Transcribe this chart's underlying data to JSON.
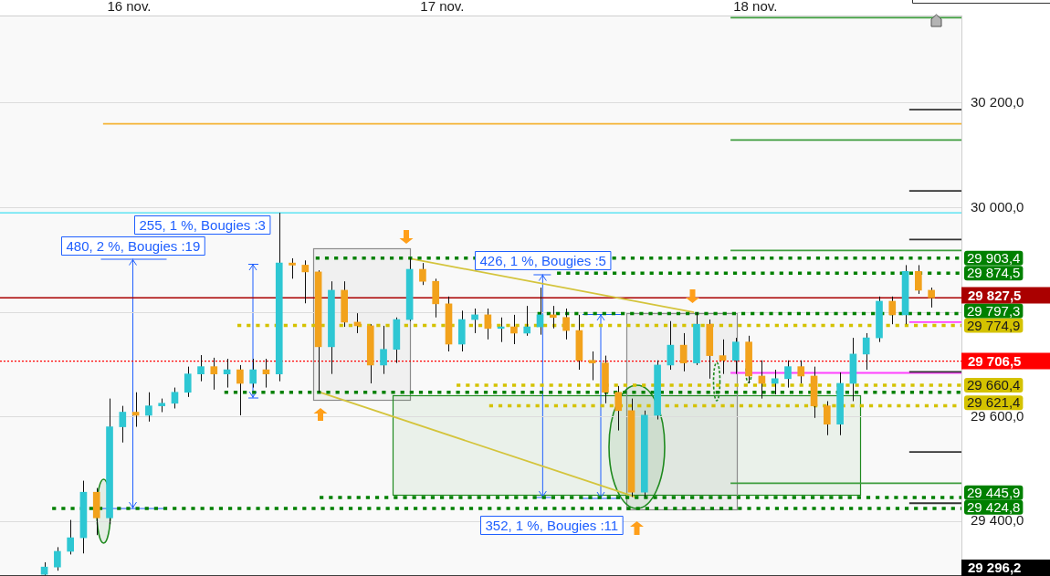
{
  "chart_data": {
    "type": "candlestick",
    "xlim": [
      "--11-15T14:06",
      "--11-18T15:48"
    ],
    "xticks": [
      {
        "value": "--11-16",
        "label": "16 nov."
      },
      {
        "value": "--11-17",
        "label": "17 nov."
      },
      {
        "value": "--11-18",
        "label": "18 nov."
      }
    ],
    "ylim": [
      29296,
      30367
    ],
    "yticks": [
      {
        "value": 29400,
        "label": "29 400,0"
      },
      {
        "value": 29600,
        "label": "29 600,0"
      },
      {
        "value": 29800,
        "label": null
      },
      {
        "value": 30000,
        "label": "30 000,0"
      },
      {
        "value": 30200,
        "label": "30 200,0"
      }
    ],
    "grid": "y",
    "x": [
      "--11-15T17:30",
      "--11-15T18:30",
      "--11-15T19:30",
      "--11-15T20:30",
      "--11-15T21:30",
      "--11-15T22:30",
      "--11-15T23:30",
      "--11-16T00:30",
      "--11-16T01:30",
      "--11-16T02:30",
      "--11-16T03:30",
      "--11-16T04:30",
      "--11-16T05:30",
      "--11-16T06:30",
      "--11-16T07:30",
      "--11-16T08:30",
      "--11-16T09:30",
      "--11-16T10:30",
      "--11-16T11:30",
      "--11-16T12:30",
      "--11-16T13:30",
      "--11-16T14:30",
      "--11-16T15:30",
      "--11-16T16:30",
      "--11-16T17:30",
      "--11-16T18:30",
      "--11-16T19:30",
      "--11-16T20:30",
      "--11-16T21:30",
      "--11-16T22:30",
      "--11-16T23:30",
      "--11-17T00:30",
      "--11-17T01:30",
      "--11-17T02:30",
      "--11-17T03:30",
      "--11-17T04:30",
      "--11-17T05:30",
      "--11-17T06:30",
      "--11-17T07:30",
      "--11-17T08:30",
      "--11-17T09:30",
      "--11-17T10:30",
      "--11-17T11:30",
      "--11-17T12:30",
      "--11-17T13:30",
      "--11-17T14:30",
      "--11-17T15:30",
      "--11-17T16:30",
      "--11-17T17:30",
      "--11-17T18:30",
      "--11-17T19:30",
      "--11-17T20:30",
      "--11-17T21:30",
      "--11-17T22:30",
      "--11-17T23:30",
      "--11-18T00:30",
      "--11-18T01:30",
      "--11-18T02:30",
      "--11-18T03:30",
      "--11-18T04:30",
      "--11-18T05:30",
      "--11-18T06:30",
      "--11-18T07:30",
      "--11-18T08:30",
      "--11-18T09:30",
      "--11-18T10:30",
      "--11-18T11:30",
      "--11-18T12:30",
      "--11-18T13:30"
    ],
    "ohlc": [
      [
        29299,
        29322,
        29297,
        29313
      ],
      [
        29313,
        29351,
        29306,
        29343
      ],
      [
        29343,
        29403,
        29337,
        29369
      ],
      [
        29369,
        29478,
        29339,
        29456
      ],
      [
        29456,
        29464,
        29374,
        29407
      ],
      [
        29407,
        29635,
        29395,
        29581
      ],
      [
        29581,
        29621,
        29551,
        29609
      ],
      [
        29609,
        29647,
        29581,
        29603
      ],
      [
        29603,
        29647,
        29591,
        29621
      ],
      [
        29621,
        29635,
        29609,
        29626
      ],
      [
        29626,
        29656,
        29616,
        29647
      ],
      [
        29647,
        29696,
        29638,
        29682
      ],
      [
        29682,
        29718,
        29668,
        29696
      ],
      [
        29696,
        29713,
        29652,
        29682
      ],
      [
        29682,
        29711,
        29656,
        29690
      ],
      [
        29690,
        29699,
        29603,
        29664
      ],
      [
        29664,
        29711,
        29656,
        29690
      ],
      [
        29690,
        29711,
        29656,
        29682
      ],
      [
        29682,
        29990,
        29668,
        29894
      ],
      [
        29894,
        29903,
        29864,
        29890
      ],
      [
        29890,
        29899,
        29817,
        29877
      ],
      [
        29877,
        29880,
        29647,
        29734
      ],
      [
        29734,
        29859,
        29682,
        29842
      ],
      [
        29842,
        29859,
        29772,
        29781
      ],
      [
        29781,
        29798,
        29760,
        29774
      ],
      [
        29774,
        29777,
        29664,
        29699
      ],
      [
        29699,
        29774,
        29682,
        29729
      ],
      [
        29729,
        29790,
        29703,
        29786
      ],
      [
        29786,
        29904,
        29783,
        29882
      ],
      [
        29882,
        29894,
        29852,
        29859
      ],
      [
        29859,
        29864,
        29790,
        29816
      ],
      [
        29816,
        29830,
        29725,
        29739
      ],
      [
        29739,
        29803,
        29725,
        29786
      ],
      [
        29786,
        29807,
        29760,
        29795
      ],
      [
        29795,
        29807,
        29748,
        29769
      ],
      [
        29769,
        29790,
        29743,
        29772
      ],
      [
        29772,
        29795,
        29739,
        29760
      ],
      [
        29760,
        29812,
        29755,
        29772
      ],
      [
        29772,
        29847,
        29757,
        29795
      ],
      [
        29795,
        29812,
        29769,
        29790
      ],
      [
        29790,
        29807,
        29748,
        29765
      ],
      [
        29765,
        29795,
        29690,
        29708
      ],
      [
        29708,
        29725,
        29670,
        29703
      ],
      [
        29703,
        29717,
        29626,
        29647
      ],
      [
        29647,
        29659,
        29574,
        29612
      ],
      [
        29612,
        29635,
        29447,
        29456
      ],
      [
        29456,
        29612,
        29447,
        29603
      ],
      [
        29603,
        29708,
        29595,
        29699
      ],
      [
        29699,
        29783,
        29690,
        29737
      ],
      [
        29737,
        29760,
        29687,
        29703
      ],
      [
        29703,
        29800,
        29699,
        29777
      ],
      [
        29777,
        29786,
        29673,
        29717
      ],
      [
        29717,
        29748,
        29682,
        29708
      ],
      [
        29708,
        29751,
        29682,
        29743
      ],
      [
        29743,
        29755,
        29664,
        29678
      ],
      [
        29678,
        29708,
        29635,
        29664
      ],
      [
        29664,
        29690,
        29643,
        29673
      ],
      [
        29673,
        29708,
        29656,
        29696
      ],
      [
        29696,
        29708,
        29664,
        29678
      ],
      [
        29678,
        29696,
        29598,
        29621
      ],
      [
        29621,
        29630,
        29565,
        29586
      ],
      [
        29586,
        29685,
        29565,
        29664
      ],
      [
        29664,
        29751,
        29630,
        29720
      ],
      [
        29720,
        29760,
        29690,
        29751
      ],
      [
        29751,
        29830,
        29743,
        29821
      ],
      [
        29821,
        29830,
        29777,
        29795
      ],
      [
        29795,
        29890,
        29777,
        29878
      ],
      [
        29878,
        29890,
        29835,
        29842
      ],
      [
        29842,
        29847,
        29809,
        29827.5
      ]
    ],
    "colors": [
      "#2ec7d3",
      "#2ec7d3",
      "#2ec7d3",
      "#2ec7d3",
      "#f2a21c",
      "#2ec7d3",
      "#2ec7d3",
      "#f2a21c",
      "#2ec7d3",
      "#2ec7d3",
      "#2ec7d3",
      "#2ec7d3",
      "#2ec7d3",
      "#f2a21c",
      "#2ec7d3",
      "#f2a21c",
      "#2ec7d3",
      "#f2a21c",
      "#2ec7d3",
      "#f2a21c",
      "#f2a21c",
      "#f2a21c",
      "#2ec7d3",
      "#f2a21c",
      "#f2a21c",
      "#f2a21c",
      "#2ec7d3",
      "#2ec7d3",
      "#2ec7d3",
      "#f2a21c",
      "#f2a21c",
      "#f2a21c",
      "#2ec7d3",
      "#2ec7d3",
      "#f2a21c",
      "#2ec7d3",
      "#f2a21c",
      "#2ec7d3",
      "#2ec7d3",
      "#f2a21c",
      "#f2a21c",
      "#f2a21c",
      "#f2a21c",
      "#f2a21c",
      "#f2a21c",
      "#f2a21c",
      "#2ec7d3",
      "#2ec7d3",
      "#2ec7d3",
      "#f2a21c",
      "#2ec7d3",
      "#f2a21c",
      "#f2a21c",
      "#2ec7d3",
      "#f2a21c",
      "#f2a21c",
      "#2ec7d3",
      "#2ec7d3",
      "#f2a21c",
      "#f2a21c",
      "#f2a21c",
      "#2ec7d3",
      "#2ec7d3",
      "#2ec7d3",
      "#2ec7d3",
      "#f2a21c",
      "#2ec7d3",
      "#f2a21c",
      "#f2a21c"
    ],
    "series": [
      {
        "type": "line",
        "x": [
          "--11-16T14:18",
          "--11-18T15:48"
        ],
        "values": [
          29903.4,
          29903.4
        ],
        "color": "#008000",
        "line_style": "dotted",
        "value_labels": [
          null,
          "29 903,4"
        ]
      },
      {
        "type": "line",
        "x": [
          "--11-17T08:48",
          "--11-18T15:48"
        ],
        "values": [
          29874.5,
          29874.5
        ],
        "color": "#008000",
        "line_style": "dotted",
        "value_labels": [
          null,
          "29 874,5"
        ]
      },
      {
        "type": "line",
        "x": [
          "--11-17T07:18",
          "--11-18T15:48"
        ],
        "values": [
          29797.3,
          29797.3
        ],
        "color": "#008000",
        "line_style": "dotted",
        "value_labels": [
          null,
          "29 797,3"
        ]
      },
      {
        "type": "line",
        "x": [
          "--11-16T08:18",
          "--11-18T15:48"
        ],
        "values": [
          29774.9,
          29774.9
        ],
        "color": "#d4c200",
        "line_style": "dotted",
        "value_labels": [
          null,
          "29 774,9"
        ]
      },
      {
        "type": "line",
        "x": [
          "--11-17T01:06",
          "--11-18T15:48"
        ],
        "values": [
          29660.4,
          29660.4
        ],
        "color": "#d4c200",
        "line_style": "dotted",
        "value_labels": [
          null,
          "29 660,4"
        ]
      },
      {
        "type": "line",
        "x": [
          "--11-16T07:18",
          "--11-18T15:48"
        ],
        "values": [
          29647,
          29647
        ],
        "color": "#008000",
        "line_style": "dotted"
      },
      {
        "type": "line",
        "x": [
          "--11-17T03:36",
          "--11-18T15:48"
        ],
        "values": [
          29621.4,
          29621.4
        ],
        "color": "#d4c200",
        "line_style": "dotted",
        "value_labels": [
          null,
          "29 621,4"
        ]
      },
      {
        "type": "line",
        "x": [
          "--11-16T14:36",
          "--11-18T15:48"
        ],
        "values": [
          29445.9,
          29445.9
        ],
        "color": "#008000",
        "line_style": "dotted",
        "value_labels": [
          null,
          "29 445,9"
        ]
      },
      {
        "type": "line",
        "x": [
          "--11-15T18:06",
          "--11-18T15:48"
        ],
        "values": [
          29424.8,
          29424.8
        ],
        "color": "#008000",
        "line_style": "dotted",
        "value_labels": [
          null,
          "29 424,8"
        ]
      },
      {
        "type": "line",
        "x": [
          "--11-15T22:00",
          "--11-18T15:48"
        ],
        "values": [
          30160,
          30160
        ],
        "color": "#f5b335"
      },
      {
        "type": "line",
        "x": [
          "--11-17T22:06",
          "--11-18T15:48"
        ],
        "values": [
          30363,
          30363
        ],
        "color": "#3d9d3d"
      },
      {
        "type": "line",
        "x": [
          "--11-17T22:06",
          "--11-18T15:48"
        ],
        "values": [
          30129,
          30129
        ],
        "color": "#3d9d3d"
      },
      {
        "type": "line",
        "x": [
          "--11-17T22:06",
          "--11-18T15:48"
        ],
        "values": [
          29918,
          29918
        ],
        "color": "#3d9d3d"
      },
      {
        "type": "line",
        "x": [
          "--11-17T22:06",
          "--11-18T15:48"
        ],
        "values": [
          29473,
          29473
        ],
        "color": "#3d9d3d"
      },
      {
        "type": "line",
        "x": [
          "--11-18T11:48",
          "--11-18T15:48"
        ],
        "values": [
          30187,
          30187
        ],
        "color": "#333333"
      },
      {
        "type": "line",
        "x": [
          "--11-18T11:48",
          "--11-18T15:48"
        ],
        "values": [
          30032,
          30032
        ],
        "color": "#333333"
      },
      {
        "type": "line",
        "x": [
          "--11-18T11:48",
          "--11-18T15:48"
        ],
        "values": [
          29939,
          29939
        ],
        "color": "#333333"
      },
      {
        "type": "line",
        "x": [
          "--11-18T11:48",
          "--11-18T15:48"
        ],
        "values": [
          29686,
          29686
        ],
        "color": "#333333"
      },
      {
        "type": "line",
        "x": [
          "--11-18T11:48",
          "--11-18T15:48"
        ],
        "values": [
          29533,
          29533
        ],
        "color": "#333333"
      },
      {
        "type": "line",
        "x": [
          "--11-18T11:48",
          "--11-18T15:48"
        ],
        "values": [
          29435,
          29435
        ],
        "color": "#333333"
      },
      {
        "type": "line",
        "x": [
          "--11-18T11:48",
          "--11-18T15:48"
        ],
        "values": [
          29781,
          29781
        ],
        "color": "#ff40ff"
      },
      {
        "type": "line",
        "x": [
          "--11-17T22:06",
          "--11-18T15:48"
        ],
        "values": [
          29684,
          29684
        ],
        "color": "#ff40ff"
      },
      {
        "type": "line",
        "x": [
          "--11-16T21:24",
          "--11-17T19:18"
        ],
        "values": [
          29903,
          29800
        ],
        "color": "#d4c43c"
      },
      {
        "type": "line",
        "x": [
          "--11-16T14:36",
          "--11-17T14:48"
        ],
        "values": [
          29647,
          29447
        ],
        "color": "#d4c43c"
      }
    ],
    "ref_lines": [
      {
        "axis": "y",
        "value": 29990,
        "color": "#3fdff2"
      },
      {
        "axis": "y",
        "value": 29827.5,
        "label": "29 827,5",
        "color": "#aa0000"
      },
      {
        "axis": "y",
        "value": 29706.5,
        "label": "29 706,5",
        "color": "#ff0000",
        "line_style": "dotted"
      },
      {
        "axis": "y",
        "value": 29296.2,
        "label": "29 296,2",
        "color": "#000000"
      }
    ],
    "annotations": [
      {
        "text": "480, 2 %, Bougies :19",
        "x": "--11-16T00:17",
        "y": 29424.8
      },
      "255, 1 %, Bougies :3",
      {
        "text": "426, 1 %, Bougies :5",
        "x": "--11-17T07:42",
        "y": 29445.9
      },
      "352, 1 %, Bougies :11"
    ]
  }
}
